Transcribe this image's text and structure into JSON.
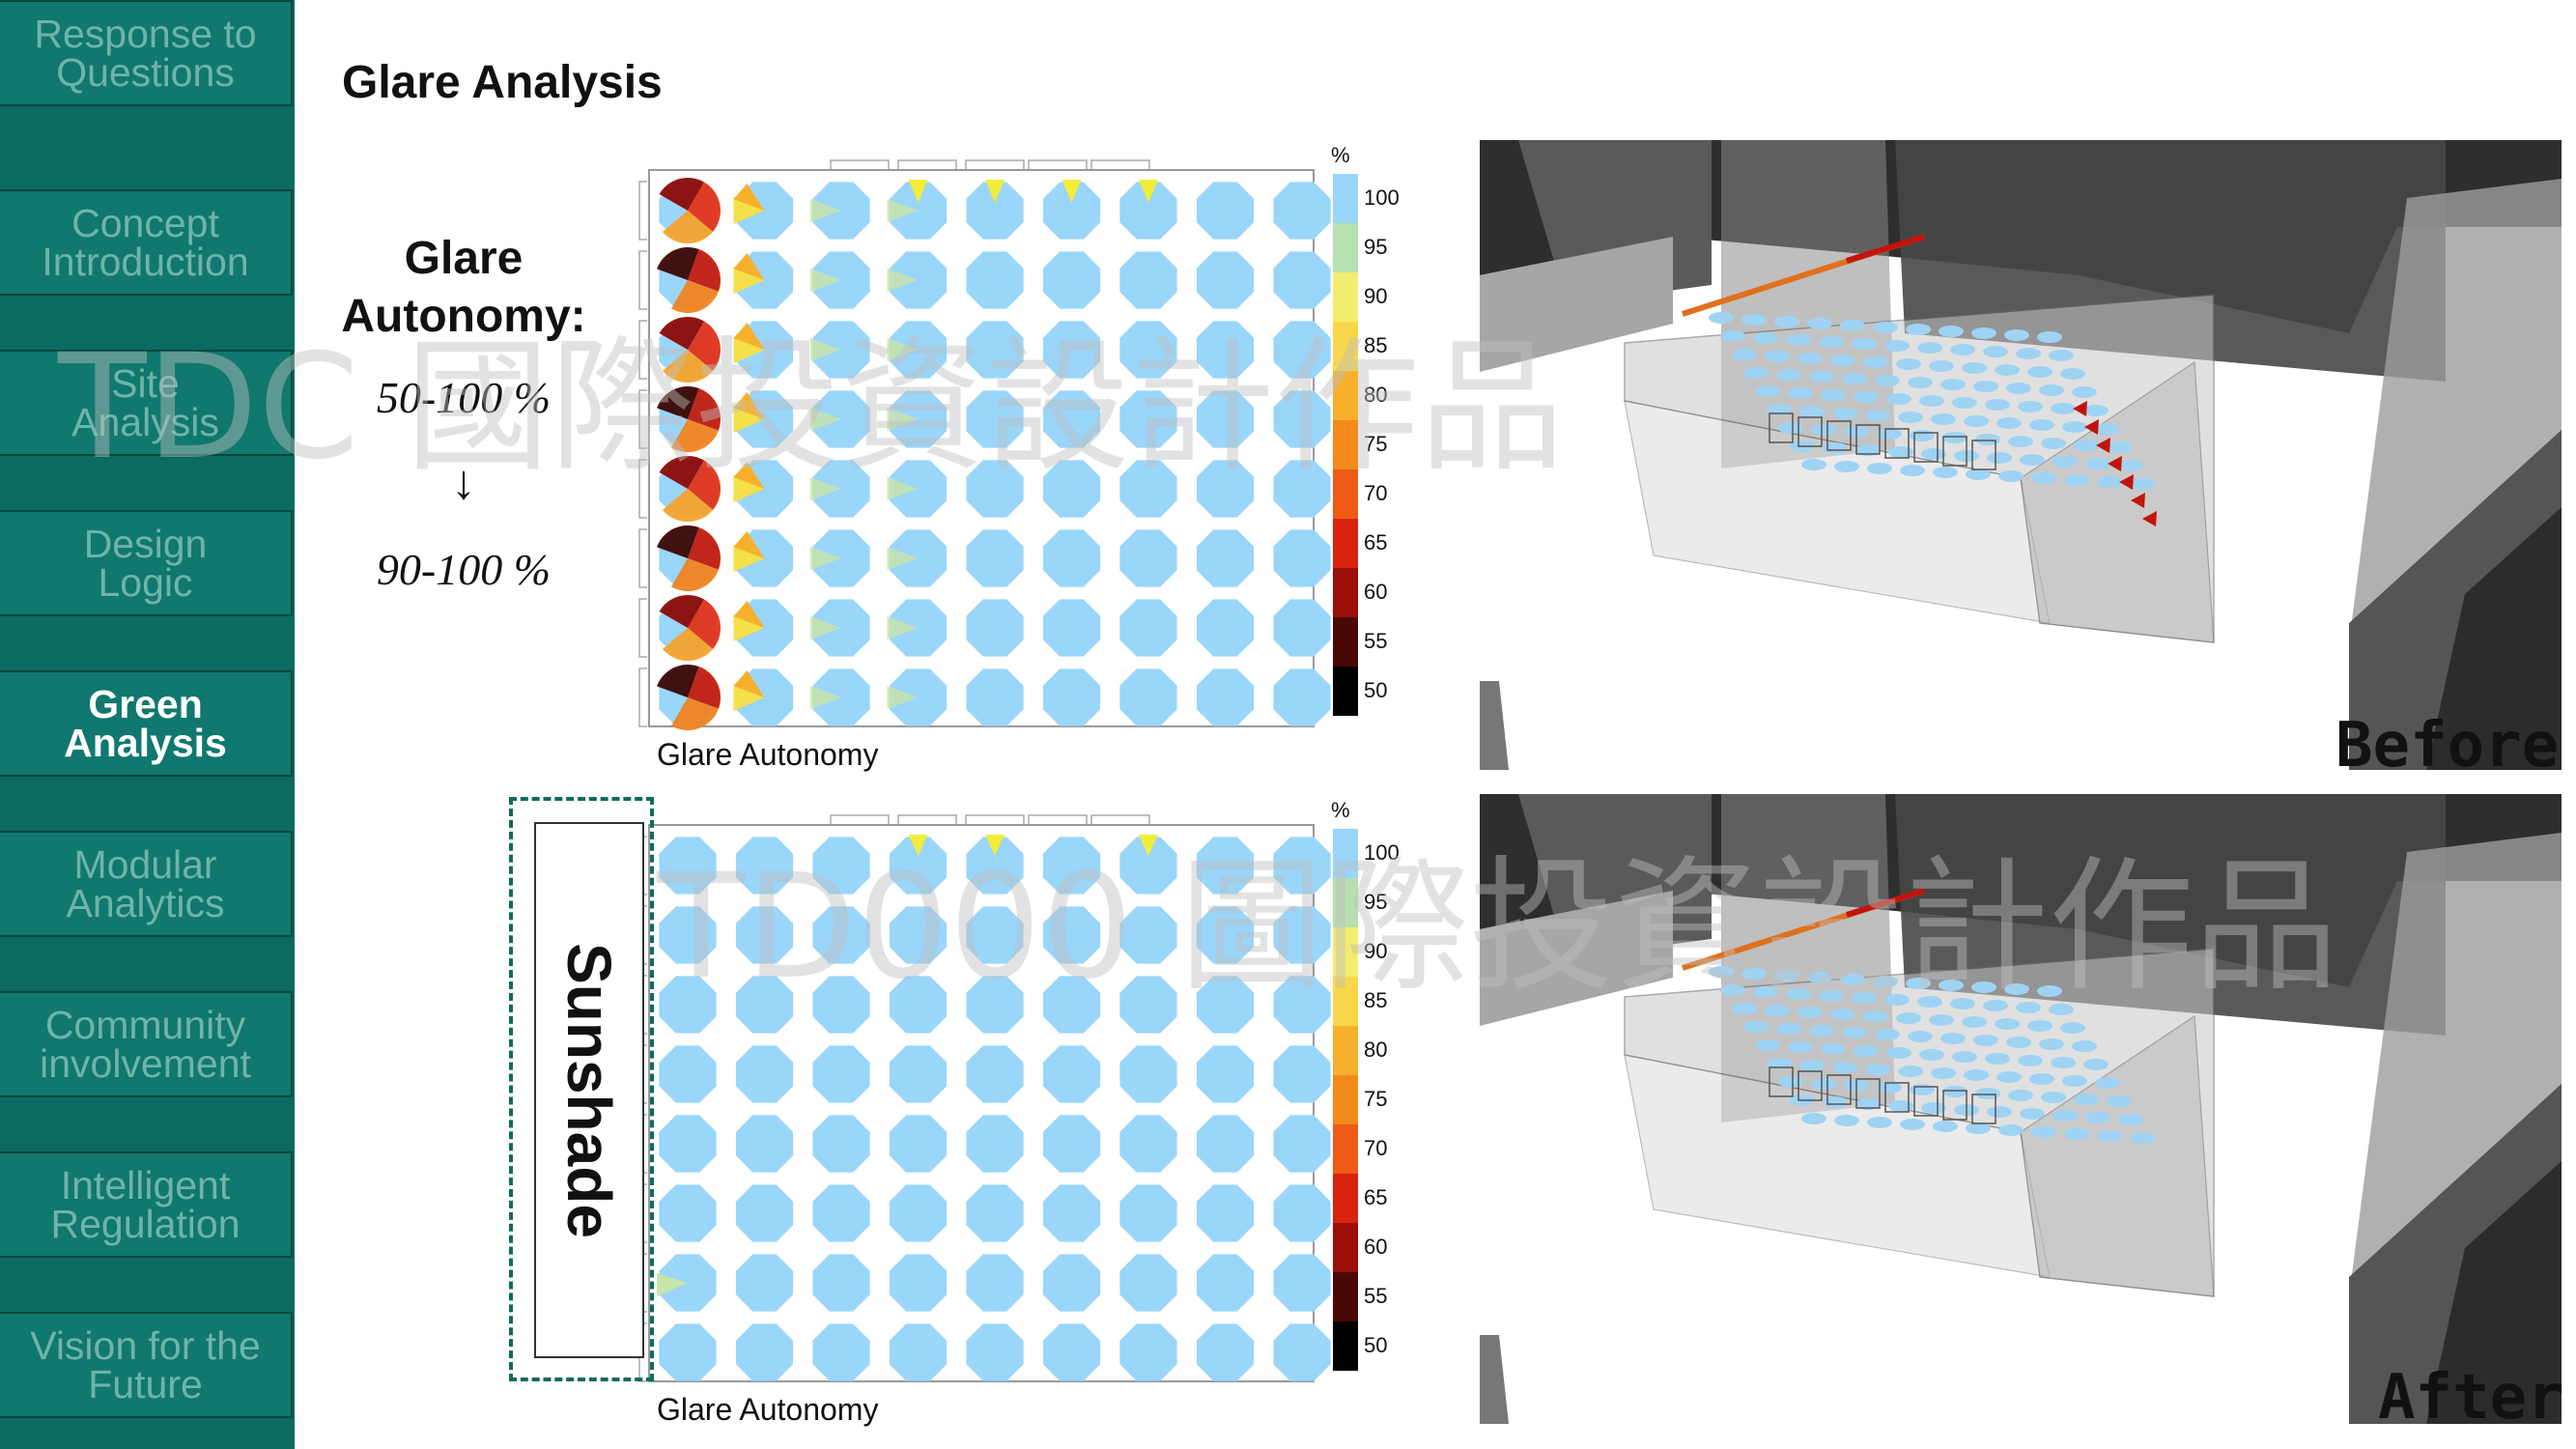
{
  "sidebar": {
    "items": [
      {
        "label": "Response to\nQuestions",
        "active": false
      },
      {
        "label": "Concept\nIntroduction",
        "active": false
      },
      {
        "label": "Site\nAnalysis",
        "active": false
      },
      {
        "label": "Design\nLogic",
        "active": false
      },
      {
        "label": "Green\nAnalysis",
        "active": true
      },
      {
        "label": "Modular\nAnalytics",
        "active": false
      },
      {
        "label": "Community\ninvolvement",
        "active": false
      },
      {
        "label": "Intelligent\nRegulation",
        "active": false
      },
      {
        "label": "Vision for the\nFuture",
        "active": false
      }
    ]
  },
  "page": {
    "title": "Glare Analysis",
    "autonomy_label": "Glare\nAutonomy:",
    "before_range": "50-100 %",
    "arrow": "↓",
    "after_range": "90-100 %",
    "sunshade_label": "Sunshade"
  },
  "watermark": {
    "text_top": "TDC 國際投資設計作品",
    "text_mid": "TD000 圖際投資設計作品"
  },
  "chart_data": [
    {
      "type": "heatmap",
      "xlabel": "Glare Autonomy",
      "legend_unit": "%",
      "legend_ticks": [
        100,
        95,
        90,
        85,
        80,
        75,
        70,
        65,
        60,
        55,
        50
      ],
      "rows": 8,
      "cols": 9
    },
    {
      "type": "heatmap",
      "xlabel": "Glare Autonomy",
      "legend_unit": "%",
      "legend_ticks": [
        100,
        95,
        90,
        85,
        80,
        75,
        70,
        65,
        60,
        55,
        50
      ],
      "rows": 8,
      "cols": 9
    }
  ],
  "renders": {
    "before_label": "Before",
    "after_label": "After"
  },
  "colors": {
    "sidebar_bg": "#0b6a61",
    "sidebar_item": "#10786e",
    "cell_blue": "#99d6fa",
    "sunshade_border": "#0f6b5e"
  }
}
